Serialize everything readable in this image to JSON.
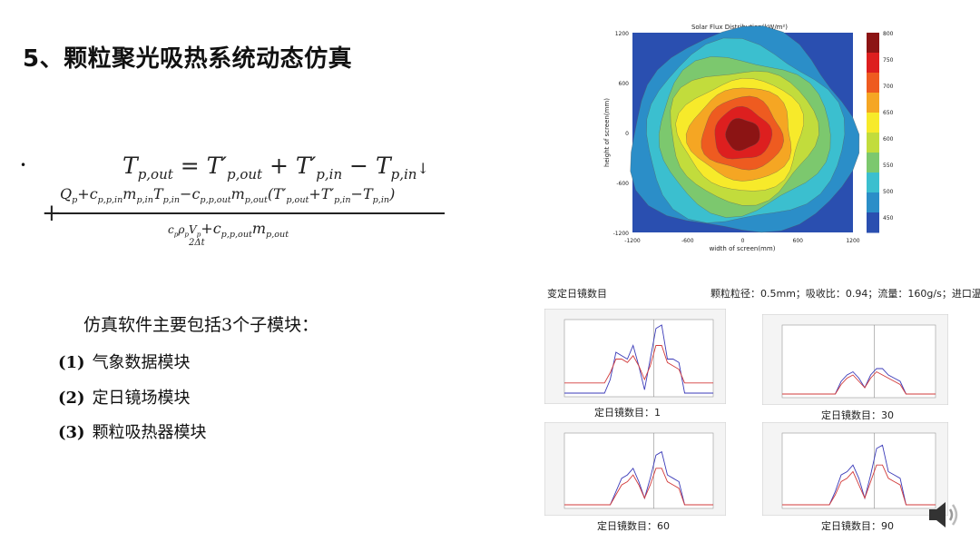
{
  "slide": {
    "title": "5、颗粒聚光吸热系统动态仿真",
    "bullet": "•",
    "intro": "仿真软件主要包括3个子模块：",
    "modules": [
      {
        "num": "(1)",
        "label": "气象数据模块"
      },
      {
        "num": "(2)",
        "label": "定日镜场模块"
      },
      {
        "num": "(3)",
        "label": "颗粒吸热器模块"
      }
    ]
  },
  "flux_map": {
    "title": "Solar Flux Distribution(kW/m²)",
    "xlabel": "width of screen(mm)",
    "ylabel": "height of screen(mm)",
    "x_ticks": [
      "-1200",
      "-600",
      "0",
      "600",
      "1200"
    ],
    "y_ticks": [
      "1200",
      "600",
      "0",
      "-600",
      "-1200"
    ],
    "colorbar_ticks": [
      "800",
      "750",
      "700",
      "650",
      "600",
      "550",
      "500",
      "450"
    ],
    "colors": [
      "#2a4fb0",
      "#2b8ec8",
      "#3bbfcf",
      "#7cc86e",
      "#c2dc3c",
      "#f7ea2a",
      "#f5a623",
      "#ee5b20",
      "#dd1f1f",
      "#8c1414"
    ]
  },
  "simulation": {
    "heading": "变定日镜数目",
    "params": "颗粒粒径：0.5mm；吸收比：0.94；流量：160g/s；进口温度：25℃",
    "panels": [
      {
        "caption": "定日镜数目：1",
        "series": [
          {
            "name": "blue",
            "values": [
              0,
              0,
              0,
              0,
              0,
              0,
              0,
              0,
              0.2,
              0.6,
              0.55,
              0.5,
              0.7,
              0.4,
              0.05,
              0.5,
              0.95,
              1.0,
              0.5,
              0.5,
              0.45,
              0,
              0,
              0,
              0,
              0,
              0
            ]
          },
          {
            "name": "red",
            "values": [
              0.15,
              0.15,
              0.15,
              0.15,
              0.15,
              0.15,
              0.15,
              0.15,
              0.3,
              0.5,
              0.5,
              0.45,
              0.55,
              0.4,
              0.2,
              0.4,
              0.7,
              0.7,
              0.45,
              0.4,
              0.35,
              0.15,
              0.15,
              0.15,
              0.15,
              0.15,
              0.15
            ]
          }
        ]
      },
      {
        "caption": "定日镜数目：30",
        "series": [
          {
            "name": "blue",
            "values": [
              0,
              0,
              0,
              0,
              0,
              0,
              0,
              0,
              0,
              0,
              0.2,
              0.3,
              0.35,
              0.25,
              0.1,
              0.3,
              0.4,
              0.4,
              0.3,
              0.25,
              0.2,
              0,
              0,
              0,
              0,
              0,
              0
            ]
          },
          {
            "name": "red",
            "values": [
              0,
              0,
              0,
              0,
              0,
              0,
              0,
              0,
              0,
              0,
              0.15,
              0.25,
              0.3,
              0.2,
              0.1,
              0.25,
              0.35,
              0.3,
              0.25,
              0.2,
              0.15,
              0,
              0,
              0,
              0,
              0,
              0
            ]
          }
        ]
      },
      {
        "caption": "定日镜数目：60",
        "series": [
          {
            "name": "blue",
            "values": [
              0,
              0,
              0,
              0,
              0,
              0,
              0,
              0,
              0,
              0.2,
              0.4,
              0.45,
              0.55,
              0.35,
              0.1,
              0.4,
              0.75,
              0.8,
              0.45,
              0.4,
              0.35,
              0,
              0,
              0,
              0,
              0,
              0
            ]
          },
          {
            "name": "red",
            "values": [
              0,
              0,
              0,
              0,
              0,
              0,
              0,
              0,
              0,
              0.15,
              0.3,
              0.35,
              0.45,
              0.3,
              0.1,
              0.3,
              0.55,
              0.55,
              0.35,
              0.3,
              0.25,
              0,
              0,
              0,
              0,
              0,
              0
            ]
          }
        ]
      },
      {
        "caption": "定日镜数目：90",
        "series": [
          {
            "name": "blue",
            "values": [
              0,
              0,
              0,
              0,
              0,
              0,
              0,
              0,
              0,
              0.2,
              0.45,
              0.5,
              0.6,
              0.4,
              0.1,
              0.45,
              0.85,
              0.9,
              0.5,
              0.45,
              0.4,
              0,
              0,
              0,
              0,
              0,
              0
            ]
          },
          {
            "name": "red",
            "values": [
              0,
              0,
              0,
              0,
              0,
              0,
              0,
              0,
              0,
              0.15,
              0.35,
              0.4,
              0.5,
              0.3,
              0.1,
              0.35,
              0.6,
              0.6,
              0.4,
              0.35,
              0.3,
              0,
              0,
              0,
              0,
              0,
              0
            ]
          }
        ]
      }
    ]
  }
}
